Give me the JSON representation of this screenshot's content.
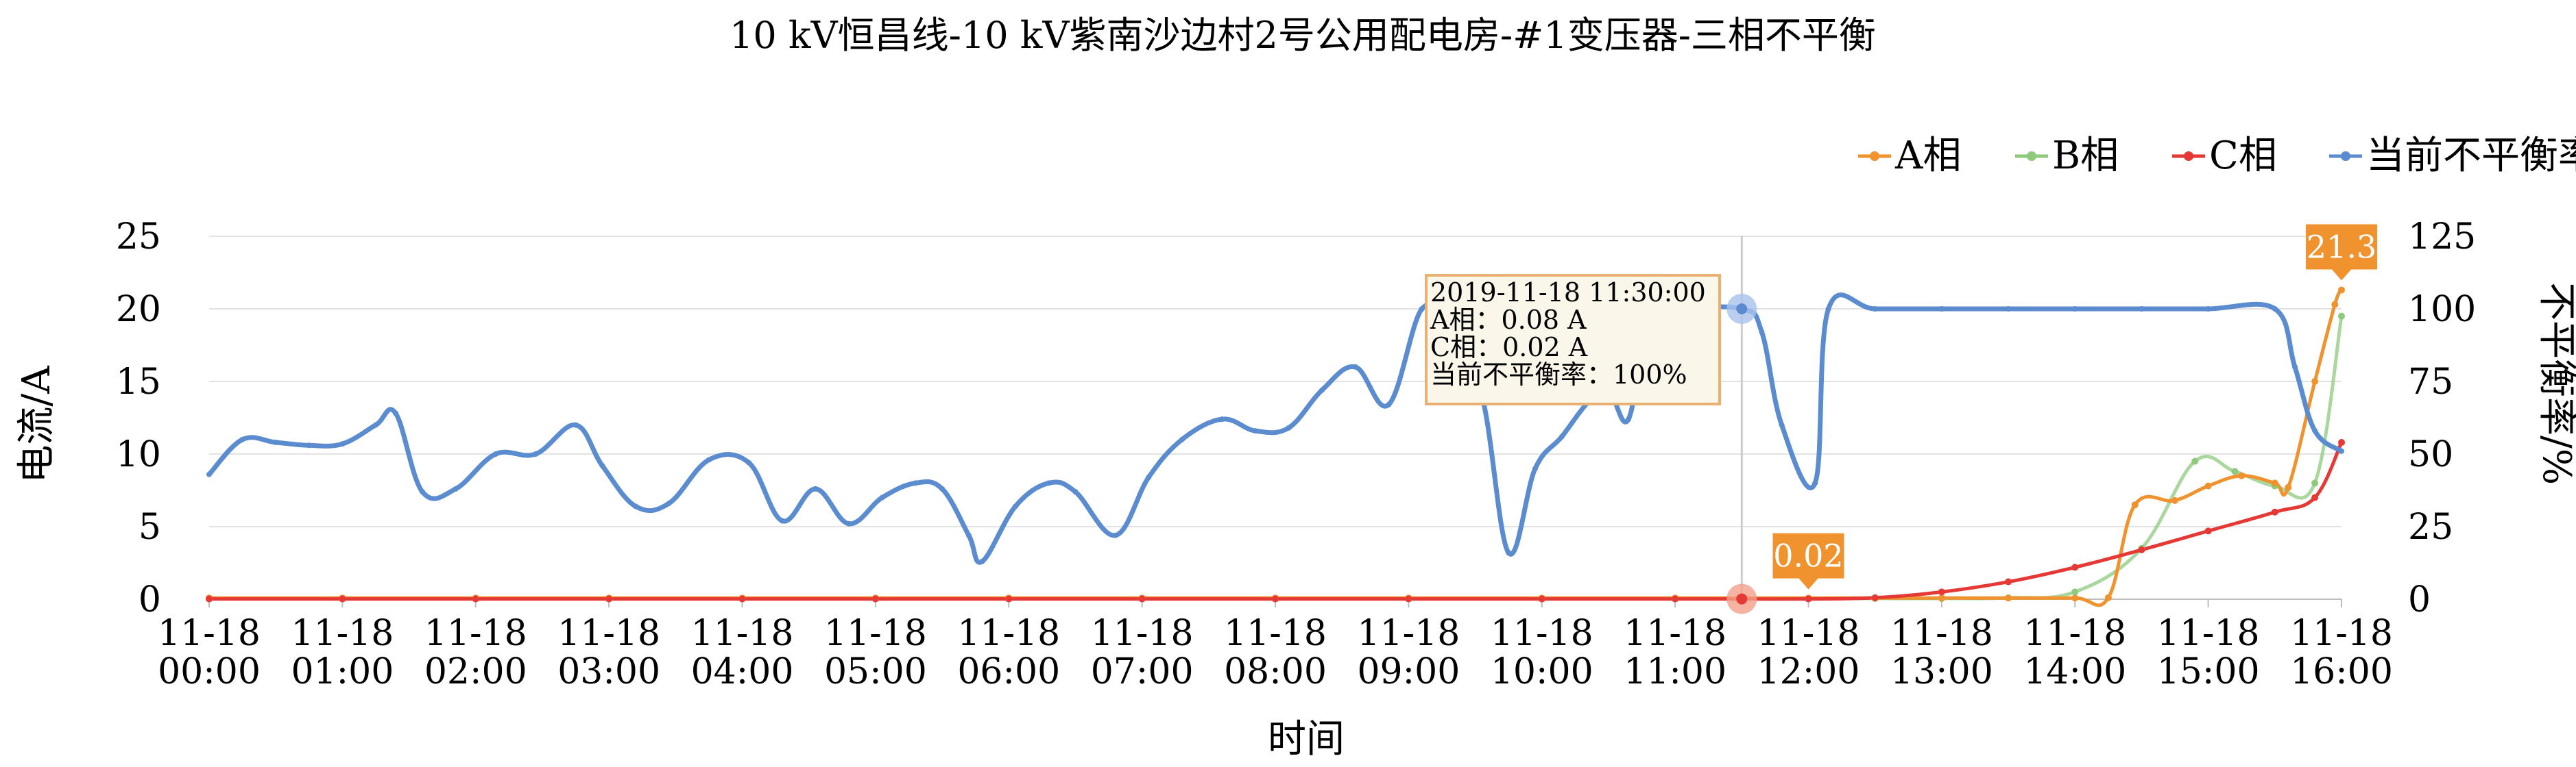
{
  "chart_data": {
    "type": "line",
    "title": "10 kV恒昌线-10 kV紫南沙边村2号公用配电房-#1变压器-三相不平衡",
    "xlabel": "时间",
    "ylabel_left": "电流/A",
    "ylabel_right": "不平衡率/%",
    "ylim_left": [
      0,
      25
    ],
    "ylim_right": [
      0,
      125
    ],
    "yticks_left": [
      "0",
      "5",
      "10",
      "15",
      "20",
      "25"
    ],
    "yticks_right": [
      "0",
      "25",
      "50",
      "75",
      "100",
      "125"
    ],
    "x_range_hours": [
      0,
      16
    ],
    "x_ticks": [
      {
        "hour": 0,
        "line1": "11-18",
        "line2": "00:00"
      },
      {
        "hour": 1,
        "line1": "11-18",
        "line2": "01:00"
      },
      {
        "hour": 2,
        "line1": "11-18",
        "line2": "02:00"
      },
      {
        "hour": 3,
        "line1": "11-18",
        "line2": "03:00"
      },
      {
        "hour": 4,
        "line1": "11-18",
        "line2": "04:00"
      },
      {
        "hour": 5,
        "line1": "11-18",
        "line2": "05:00"
      },
      {
        "hour": 6,
        "line1": "11-18",
        "line2": "06:00"
      },
      {
        "hour": 7,
        "line1": "11-18",
        "line2": "07:00"
      },
      {
        "hour": 8,
        "line1": "11-18",
        "line2": "08:00"
      },
      {
        "hour": 9,
        "line1": "11-18",
        "line2": "09:00"
      },
      {
        "hour": 10,
        "line1": "11-18",
        "line2": "10:00"
      },
      {
        "hour": 11,
        "line1": "11-18",
        "line2": "11:00"
      },
      {
        "hour": 12,
        "line1": "11-18",
        "line2": "12:00"
      },
      {
        "hour": 13,
        "line1": "11-18",
        "line2": "13:00"
      },
      {
        "hour": 14,
        "line1": "11-18",
        "line2": "14:00"
      },
      {
        "hour": 15,
        "line1": "11-18",
        "line2": "15:00"
      },
      {
        "hour": 16,
        "line1": "11-18",
        "line2": "16:00"
      }
    ],
    "legend_position": "top-right",
    "grid": "horizontal",
    "series": [
      {
        "name": "A相",
        "axis": "left",
        "color": "#f0922e",
        "points": [
          [
            0,
            0.08
          ],
          [
            1,
            0.08
          ],
          [
            2,
            0.08
          ],
          [
            3,
            0.08
          ],
          [
            4,
            0.08
          ],
          [
            5,
            0.08
          ],
          [
            6,
            0.08
          ],
          [
            7,
            0.08
          ],
          [
            8,
            0.08
          ],
          [
            9,
            0.08
          ],
          [
            10,
            0.08
          ],
          [
            11,
            0.08
          ],
          [
            11.5,
            0.08
          ],
          [
            12,
            0.08
          ],
          [
            12.5,
            0.08
          ],
          [
            13,
            0.08
          ],
          [
            13.5,
            0.08
          ],
          [
            14,
            0.08
          ],
          [
            14.25,
            0.1
          ],
          [
            14.45,
            6.5
          ],
          [
            14.75,
            6.8
          ],
          [
            15,
            7.8
          ],
          [
            15.25,
            8.5
          ],
          [
            15.5,
            8.0
          ],
          [
            15.6,
            7.7
          ],
          [
            15.8,
            15.0
          ],
          [
            15.95,
            20.3
          ],
          [
            16,
            21.3
          ]
        ]
      },
      {
        "name": "B相",
        "axis": "left",
        "color": "#8ec97c",
        "points": [
          [
            0,
            0.05
          ],
          [
            1,
            0.05
          ],
          [
            2,
            0.05
          ],
          [
            3,
            0.05
          ],
          [
            4,
            0.05
          ],
          [
            5,
            0.05
          ],
          [
            6,
            0.05
          ],
          [
            7,
            0.05
          ],
          [
            8,
            0.05
          ],
          [
            9,
            0.05
          ],
          [
            10,
            0.05
          ],
          [
            11,
            0.05
          ],
          [
            11.5,
            0.05
          ],
          [
            12,
            0.05
          ],
          [
            12.5,
            0.05
          ],
          [
            13,
            0.05
          ],
          [
            13.5,
            0.1
          ],
          [
            14,
            0.5
          ],
          [
            14.5,
            3.5
          ],
          [
            14.9,
            9.5
          ],
          [
            15.2,
            8.8
          ],
          [
            15.5,
            7.8
          ],
          [
            15.8,
            8.0
          ],
          [
            16,
            19.5
          ]
        ]
      },
      {
        "name": "C相",
        "axis": "left",
        "color": "#e53935",
        "points": [
          [
            0,
            0.02
          ],
          [
            1,
            0.02
          ],
          [
            2,
            0.02
          ],
          [
            3,
            0.02
          ],
          [
            4,
            0.02
          ],
          [
            5,
            0.02
          ],
          [
            6,
            0.02
          ],
          [
            7,
            0.02
          ],
          [
            8,
            0.02
          ],
          [
            9,
            0.02
          ],
          [
            10,
            0.02
          ],
          [
            11,
            0.02
          ],
          [
            11.5,
            0.02
          ],
          [
            12,
            0.02
          ],
          [
            12.5,
            0.1
          ],
          [
            13,
            0.5
          ],
          [
            13.5,
            1.2
          ],
          [
            14,
            2.2
          ],
          [
            14.5,
            3.4
          ],
          [
            15,
            4.7
          ],
          [
            15.5,
            6.0
          ],
          [
            15.8,
            7.0
          ],
          [
            16,
            10.8
          ]
        ]
      },
      {
        "name": "当前不平衡率",
        "axis": "right",
        "color": "#5b8ccf",
        "points": [
          [
            0,
            43
          ],
          [
            0.25,
            55
          ],
          [
            0.5,
            54
          ],
          [
            0.75,
            53
          ],
          [
            1,
            53.5
          ],
          [
            1.25,
            60
          ],
          [
            1.4,
            64
          ],
          [
            1.6,
            37
          ],
          [
            1.85,
            38
          ],
          [
            2.15,
            50
          ],
          [
            2.45,
            50
          ],
          [
            2.75,
            60
          ],
          [
            2.95,
            46
          ],
          [
            3.2,
            32
          ],
          [
            3.45,
            33
          ],
          [
            3.75,
            48
          ],
          [
            4.05,
            47
          ],
          [
            4.3,
            27
          ],
          [
            4.55,
            38
          ],
          [
            4.8,
            26
          ],
          [
            5.05,
            35
          ],
          [
            5.3,
            40
          ],
          [
            5.5,
            38
          ],
          [
            5.7,
            22
          ],
          [
            5.8,
            13
          ],
          [
            6.05,
            32
          ],
          [
            6.3,
            40
          ],
          [
            6.5,
            37
          ],
          [
            6.8,
            22
          ],
          [
            7.05,
            42
          ],
          [
            7.3,
            55
          ],
          [
            7.6,
            62
          ],
          [
            7.85,
            58
          ],
          [
            8.1,
            59
          ],
          [
            8.35,
            72
          ],
          [
            8.6,
            80
          ],
          [
            8.85,
            67
          ],
          [
            9.1,
            100
          ],
          [
            9.3,
            92
          ],
          [
            9.55,
            70
          ],
          [
            9.75,
            16
          ],
          [
            9.95,
            45
          ],
          [
            10.15,
            56
          ],
          [
            10.35,
            68
          ],
          [
            10.5,
            72
          ],
          [
            10.65,
            62
          ],
          [
            10.8,
            98
          ],
          [
            11,
            100
          ],
          [
            11.5,
            100
          ],
          [
            11.65,
            92
          ],
          [
            11.8,
            60
          ],
          [
            12.05,
            40
          ],
          [
            12.15,
            100
          ],
          [
            12.5,
            100
          ],
          [
            13,
            100
          ],
          [
            13.5,
            100
          ],
          [
            14,
            100
          ],
          [
            14.5,
            100
          ],
          [
            15,
            100
          ],
          [
            15.5,
            100
          ],
          [
            15.65,
            80
          ],
          [
            15.8,
            58
          ],
          [
            16,
            51
          ]
        ]
      }
    ],
    "tooltip": {
      "hour": 11.5,
      "lines": [
        "2019-11-18 11:30:00",
        "A相：0.08 A",
        "C相：0.02 A",
        "当前不平衡率：100%"
      ]
    },
    "data_labels": [
      {
        "text": "21.3",
        "series": "A相",
        "hour": 16,
        "value": 21.3,
        "color": "#f0922e"
      },
      {
        "text": "0.02",
        "series": "C相",
        "hour": 12,
        "value": 0.02,
        "color": "#f0922e"
      }
    ],
    "highlight_points": [
      {
        "series": "当前不平衡率",
        "hour": 11.5,
        "value": 100,
        "color": "#a9c3ec"
      },
      {
        "series": "C相",
        "hour": 11.5,
        "value": 0.02,
        "color": "#f4a08a"
      }
    ]
  }
}
